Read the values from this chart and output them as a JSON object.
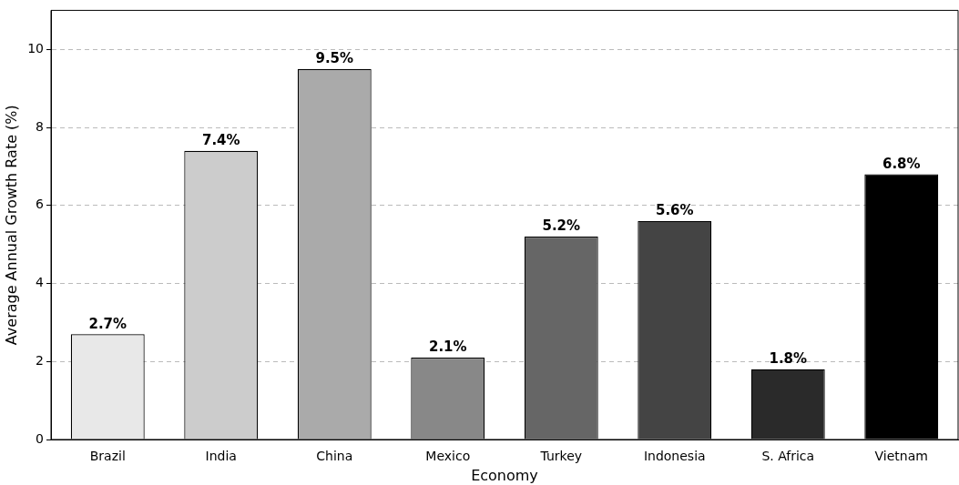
{
  "chart_data": {
    "type": "bar",
    "xlabel": "Economy",
    "ylabel": "Average Annual Growth Rate (%)",
    "categories": [
      "Brazil",
      "India",
      "China",
      "Mexico",
      "Turkey",
      "Indonesia",
      "S. Africa",
      "Vietnam"
    ],
    "values": [
      2.7,
      7.4,
      9.5,
      2.1,
      5.2,
      5.6,
      1.8,
      6.8
    ],
    "colors": [
      "#e8e8e8",
      "#cccccc",
      "#aaaaaa",
      "#888888",
      "#666666",
      "#444444",
      "#2a2a2a",
      "#000000"
    ],
    "value_labels": [
      "2.7%",
      "7.4%",
      "9.5%",
      "2.1%",
      "5.2%",
      "5.6%",
      "1.8%",
      "6.8%"
    ],
    "ylim": [
      0,
      11
    ],
    "yticks": [
      0,
      2,
      4,
      6,
      8,
      10
    ],
    "grid": "y",
    "legend": false
  }
}
